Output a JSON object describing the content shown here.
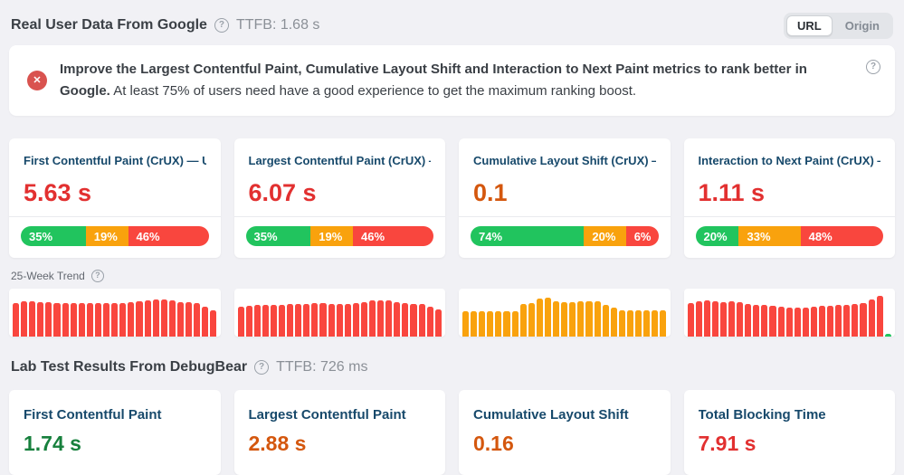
{
  "icons": {
    "help": "?",
    "error": "✕"
  },
  "palette": {
    "good": "#21c45e",
    "needs_improvement": "#f9a20d",
    "poor": "#f9463e"
  },
  "rum_header": {
    "title": "Real User Data From Google",
    "ttfb": "TTFB: 1.68 s",
    "toggle": {
      "options": [
        "URL",
        "Origin"
      ],
      "selected": "URL"
    }
  },
  "banner": {
    "bold": "Improve the Largest Contentful Paint, Cumulative Layout Shift and Interaction to Next Paint metrics to rank better in Google.",
    "rest": "At least 75% of users need have a good experience to get the maximum ranking boost."
  },
  "crux_cards": [
    {
      "title": "First Contentful Paint (CrUX) — URL",
      "value": "5.63 s",
      "value_color": "#e23030",
      "distribution": [
        {
          "status": "good",
          "label": "35%",
          "pct": 35
        },
        {
          "status": "needs_improvement",
          "label": "19%",
          "pct": 19
        },
        {
          "status": "poor",
          "label": "46%",
          "pct": 46
        }
      ]
    },
    {
      "title": "Largest Contentful Paint (CrUX) — U…",
      "value": "6.07 s",
      "value_color": "#e23030",
      "distribution": [
        {
          "status": "good",
          "label": "35%",
          "pct": 35
        },
        {
          "status": "needs_improvement",
          "label": "19%",
          "pct": 19
        },
        {
          "status": "poor",
          "label": "46%",
          "pct": 46
        }
      ]
    },
    {
      "title": "Cumulative Layout Shift (CrUX) — U…",
      "value": "0.1",
      "value_color": "#d4570e",
      "distribution": [
        {
          "status": "good",
          "label": "74%",
          "pct": 74
        },
        {
          "status": "needs_improvement",
          "label": "20%",
          "pct": 20
        },
        {
          "status": "poor",
          "label": "6%",
          "pct": 6
        }
      ]
    },
    {
      "title": "Interaction to Next Paint (CrUX) — U…",
      "value": "1.11 s",
      "value_color": "#e23030",
      "distribution": [
        {
          "status": "good",
          "label": "20%",
          "pct": 20
        },
        {
          "status": "needs_improvement",
          "label": "33%",
          "pct": 33
        },
        {
          "status": "poor",
          "label": "48%",
          "pct": 48
        }
      ]
    }
  ],
  "trend": {
    "label": "25-Week Trend"
  },
  "chart_data": [
    {
      "type": "bar",
      "title": "First Contentful Paint (CrUX) 25-week trend",
      "ylabel": "relative bar height (no axis shown)",
      "color": "#f9463e",
      "values": [
        0.8,
        0.84,
        0.84,
        0.83,
        0.82,
        0.81,
        0.8,
        0.8,
        0.8,
        0.8,
        0.8,
        0.81,
        0.81,
        0.81,
        0.82,
        0.84,
        0.88,
        0.9,
        0.9,
        0.86,
        0.83,
        0.82,
        0.81,
        0.72,
        0.62
      ]
    },
    {
      "type": "bar",
      "title": "Largest Contentful Paint (CrUX) 25-week trend",
      "ylabel": "relative bar height (no axis shown)",
      "color": "#f9463e",
      "values": [
        0.72,
        0.75,
        0.76,
        0.76,
        0.77,
        0.77,
        0.78,
        0.78,
        0.79,
        0.8,
        0.8,
        0.79,
        0.78,
        0.79,
        0.8,
        0.82,
        0.86,
        0.88,
        0.86,
        0.83,
        0.8,
        0.79,
        0.78,
        0.72,
        0.66
      ]
    },
    {
      "type": "bar",
      "title": "Cumulative Layout Shift (CrUX) 25-week trend",
      "ylabel": "relative bar height (no axis shown)",
      "color": "#f9a20d",
      "values": [
        0.6,
        0.61,
        0.61,
        0.6,
        0.61,
        0.6,
        0.61,
        0.78,
        0.8,
        0.92,
        0.94,
        0.85,
        0.82,
        0.82,
        0.84,
        0.85,
        0.84,
        0.76,
        0.7,
        0.62,
        0.62,
        0.62,
        0.62,
        0.63,
        0.62
      ]
    },
    {
      "type": "bar",
      "title": "Interaction to Next Paint (CrUX) 25-week trend",
      "ylabel": "relative bar height (no axis shown)",
      "color": "#f9463e",
      "override_colors": {
        "24": "#21c45e"
      },
      "values": [
        0.8,
        0.84,
        0.86,
        0.84,
        0.82,
        0.84,
        0.82,
        0.78,
        0.76,
        0.76,
        0.75,
        0.72,
        0.7,
        0.69,
        0.7,
        0.71,
        0.73,
        0.74,
        0.76,
        0.77,
        0.78,
        0.8,
        0.9,
        0.97,
        0.06
      ]
    }
  ],
  "lab_header": {
    "title": "Lab Test Results From DebugBear",
    "ttfb": "TTFB: 726 ms"
  },
  "lab_cards": [
    {
      "title": "First Contentful Paint",
      "value": "1.74 s",
      "value_color": "#17803d"
    },
    {
      "title": "Largest Contentful Paint",
      "value": "2.88 s",
      "value_color": "#d4570e"
    },
    {
      "title": "Cumulative Layout Shift",
      "value": "0.16",
      "value_color": "#d4570e"
    },
    {
      "title": "Total Blocking Time",
      "value": "7.91 s",
      "value_color": "#e23030"
    }
  ]
}
